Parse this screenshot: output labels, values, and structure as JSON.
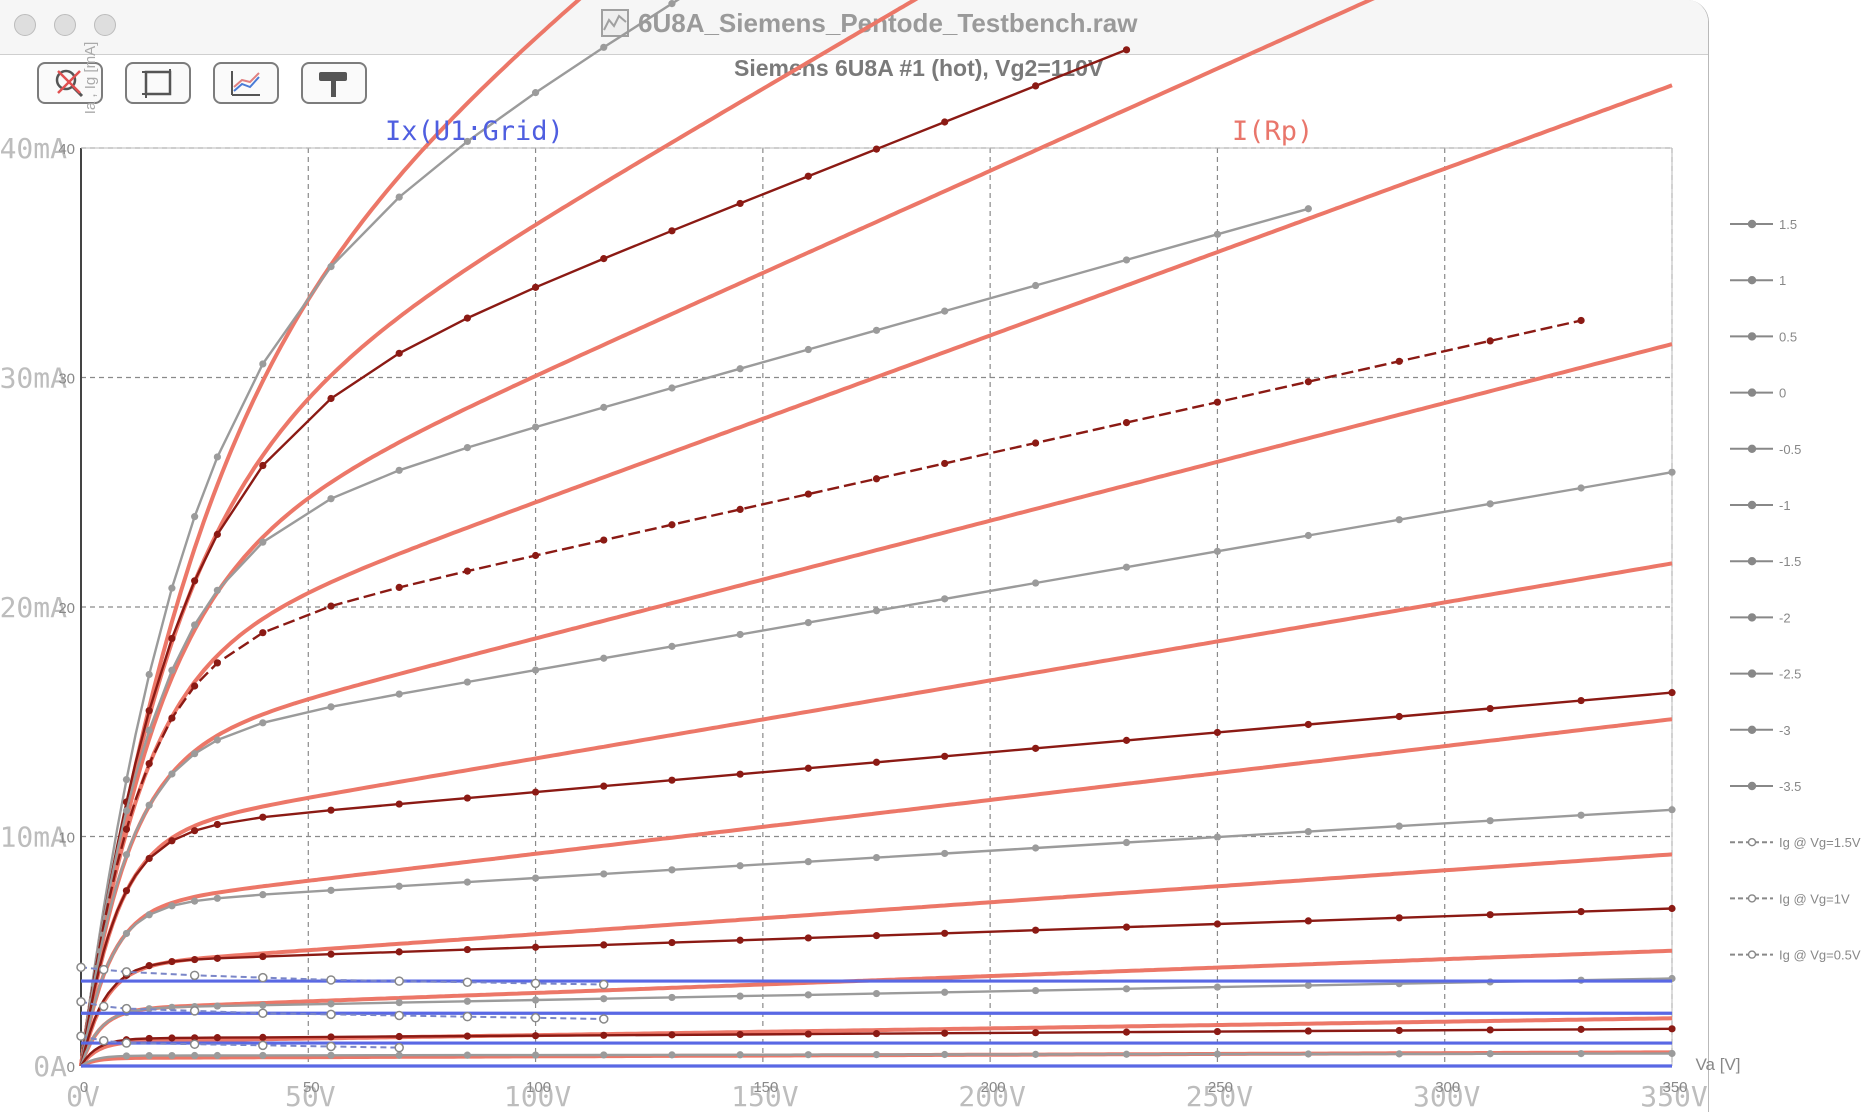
{
  "window": {
    "title": "6U8A_Siemens_Pentode_Testbench.raw"
  },
  "toolbar": {
    "buttons": [
      {
        "name": "zoom-reset-button",
        "icon": "magnifier-cross-icon"
      },
      {
        "name": "autoscale-button",
        "icon": "frame-icon"
      },
      {
        "name": "data-tips-button",
        "icon": "chart-cursor-icon"
      },
      {
        "name": "settings-button",
        "icon": "hammer-icon"
      }
    ]
  },
  "chart_data": {
    "type": "line",
    "title": "Siemens 6U8A #1 (hot), Vg2=110V",
    "xlabel": "Va [V]",
    "ylabel": "Ia , Ig [mA]",
    "xlim": [
      0,
      350
    ],
    "ylim": [
      0,
      40
    ],
    "grid": true,
    "x_ticks": [
      "0V",
      "50V",
      "100V",
      "150V",
      "200V",
      "250V",
      "300V",
      "350V"
    ],
    "x_ticks_minor": [
      "0",
      "50",
      "100",
      "150",
      "200",
      "250",
      "300",
      "350"
    ],
    "y_ticks": [
      "0A",
      "10mA",
      "20mA",
      "30mA",
      "40mA"
    ],
    "y_ticks_minor": [
      "0",
      "10",
      "20",
      "30",
      "40"
    ],
    "trace_labels": [
      {
        "text": "Ix(U1:Grid)",
        "color": "#4f5ee0"
      },
      {
        "text": "I(Rp)",
        "color": "#e9766b"
      }
    ],
    "legend_position": "right",
    "legend": [
      "1.5",
      "1",
      "0.5",
      "0",
      "-0.5",
      "-1",
      "-1.5",
      "-2",
      "-2.5",
      "-3",
      "-3.5",
      "Ig @ Vg=1.5V",
      "Ig @ Vg=1V",
      "Ig @ Vg=0.5V"
    ],
    "measured_x": [
      0,
      1,
      2,
      3,
      4,
      5,
      6,
      8,
      10,
      12,
      15,
      20,
      25,
      30,
      40,
      55,
      70,
      85,
      100,
      115,
      130,
      145,
      160,
      175,
      190,
      210,
      230,
      250,
      270,
      290,
      310,
      330,
      350
    ],
    "series": [
      {
        "name": "1.5",
        "sat": 30.5,
        "tau": 20,
        "slope": 0.004,
        "xmax": 210,
        "role": "measured"
      },
      {
        "name": "1",
        "sat": 26.2,
        "tau": 18,
        "slope": 0.003,
        "xmax": 230,
        "role": "measured"
      },
      {
        "name": "0.5",
        "sat": 22.3,
        "tau": 15,
        "slope": 0.0025,
        "xmax": 270,
        "role": "measured"
      },
      {
        "name": "0",
        "sat": 17.8,
        "tau": 12,
        "slope": 0.0025,
        "xmax": 330,
        "role": "measured"
      },
      {
        "name": "-0.5",
        "sat": 13.8,
        "tau": 9.5,
        "slope": 0.0025,
        "xmax": 350,
        "role": "measured"
      },
      {
        "name": "-1",
        "sat": 10.2,
        "tau": 7.5,
        "slope": 0.0017,
        "xmax": 350,
        "role": "measured"
      },
      {
        "name": "-1.5",
        "sat": 7.0,
        "tau": 6,
        "slope": 0.0017,
        "xmax": 350,
        "role": "measured"
      },
      {
        "name": "-2",
        "sat": 4.5,
        "tau": 5,
        "slope": 0.0015,
        "xmax": 350,
        "role": "measured"
      },
      {
        "name": "-2.5",
        "sat": 2.5,
        "tau": 4,
        "slope": 0.0015,
        "xmax": 350,
        "role": "measured"
      },
      {
        "name": "-3",
        "sat": 1.2,
        "tau": 3.5,
        "slope": 0.001,
        "xmax": 350,
        "role": "measured"
      },
      {
        "name": "-3.5",
        "sat": 0.45,
        "tau": 3,
        "slope": 0.0006,
        "xmax": 350,
        "role": "measured"
      }
    ],
    "model_series": [
      {
        "sat": 29.2,
        "tau": 22,
        "slope": 0.0055
      },
      {
        "sat": 25.2,
        "tau": 18,
        "slope": 0.0046
      },
      {
        "sat": 21.2,
        "tau": 15,
        "slope": 0.0042
      },
      {
        "sat": 17.3,
        "tau": 12,
        "slope": 0.0042
      },
      {
        "sat": 13.5,
        "tau": 9.5,
        "slope": 0.0038
      },
      {
        "sat": 10.0,
        "tau": 7.5,
        "slope": 0.0034
      },
      {
        "sat": 6.9,
        "tau": 6,
        "slope": 0.0034
      },
      {
        "sat": 4.35,
        "tau": 5,
        "slope": 0.0032
      },
      {
        "sat": 2.45,
        "tau": 4,
        "slope": 0.003
      },
      {
        "sat": 1.05,
        "tau": 3.5,
        "slope": 0.0028
      },
      {
        "sat": 0.35,
        "tau": 3,
        "slope": 0.002
      }
    ],
    "grid_current_measured": [
      {
        "name": "Ig @ Vg=1.5V",
        "x": [
          0,
          5,
          10,
          25,
          40,
          55,
          70,
          85,
          100,
          115
        ],
        "y": [
          4.3,
          4.2,
          4.1,
          3.95,
          3.85,
          3.75,
          3.7,
          3.65,
          3.6,
          3.55
        ]
      },
      {
        "name": "Ig @ Vg=1V",
        "x": [
          0,
          5,
          10,
          25,
          40,
          55,
          70,
          85,
          100,
          115
        ],
        "y": [
          2.8,
          2.6,
          2.5,
          2.4,
          2.3,
          2.25,
          2.2,
          2.15,
          2.1,
          2.05
        ]
      },
      {
        "name": "Ig @ Vg=0.5V",
        "x": [
          0,
          5,
          10,
          25,
          40,
          55,
          70
        ],
        "y": [
          1.3,
          1.1,
          1.0,
          0.95,
          0.9,
          0.85,
          0.8
        ]
      }
    ],
    "grid_current_model": [
      3.7,
      2.3,
      1.0,
      0.0
    ]
  }
}
